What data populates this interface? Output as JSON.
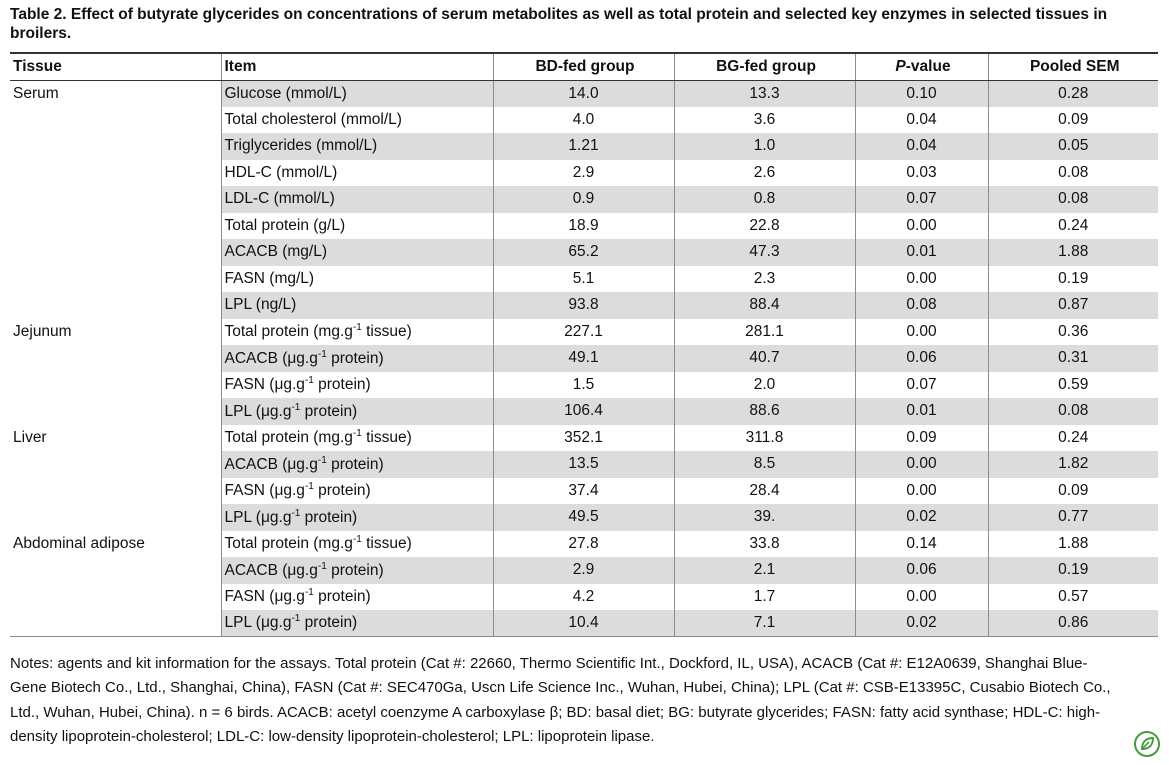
{
  "caption": "Table 2. Effect of butyrate glycerides on concentrations of serum metabolites as well as total protein and selected key enzymes in selected tissues in broilers.",
  "columns": {
    "tissue": "Tissue",
    "item": "Item",
    "bd": "BD-fed group",
    "bg": "BG-fed group",
    "p_italic": "P",
    "p_rest": "-value",
    "sem": "Pooled SEM"
  },
  "rows": [
    {
      "tissue": "Serum",
      "item": "Glucose (mmol/L)",
      "bd": "14.0",
      "bg": "13.3",
      "p": "0.10",
      "sem": "0.28"
    },
    {
      "tissue": "",
      "item": "Total cholesterol (mmol/L)",
      "bd": "4.0",
      "bg": "3.6",
      "p": "0.04",
      "sem": "0.09"
    },
    {
      "tissue": "",
      "item": "Triglycerides (mmol/L)",
      "bd": "1.21",
      "bg": "1.0",
      "p": "0.04",
      "sem": "0.05"
    },
    {
      "tissue": "",
      "item": "HDL-C (mmol/L)",
      "bd": "2.9",
      "bg": "2.6",
      "p": "0.03",
      "sem": "0.08"
    },
    {
      "tissue": "",
      "item": "LDL-C (mmol/L)",
      "bd": "0.9",
      "bg": "0.8",
      "p": "0.07",
      "sem": "0.08"
    },
    {
      "tissue": "",
      "item": "Total protein (g/L)",
      "bd": "18.9",
      "bg": "22.8",
      "p": "0.00",
      "sem": "0.24"
    },
    {
      "tissue": "",
      "item": "ACACB (mg/L)",
      "bd": "65.2",
      "bg": "47.3",
      "p": "0.01",
      "sem": "1.88"
    },
    {
      "tissue": "",
      "item": "FASN (mg/L)",
      "bd": "5.1",
      "bg": "2.3",
      "p": "0.00",
      "sem": "0.19"
    },
    {
      "tissue": "",
      "item": "LPL (ng/L)",
      "bd": "93.8",
      "bg": "88.4",
      "p": "0.08",
      "sem": "0.87"
    },
    {
      "tissue": "Jejunum",
      "item_pre": "Total protein (mg.g",
      "item_sup": "-1",
      "item_post": " tissue)",
      "bd": "227.1",
      "bg": "281.1",
      "p": "0.00",
      "sem": "0.36"
    },
    {
      "tissue": "",
      "item_pre": "ACACB (μg.g",
      "item_sup": "-1",
      "item_post": " protein)",
      "bd": "49.1",
      "bg": "40.7",
      "p": "0.06",
      "sem": "0.31"
    },
    {
      "tissue": "",
      "item_pre": "FASN (μg.g",
      "item_sup": "-1",
      "item_post": " protein)",
      "bd": "1.5",
      "bg": "2.0",
      "p": "0.07",
      "sem": "0.59"
    },
    {
      "tissue": "",
      "item_pre": "LPL (μg.g",
      "item_sup": "-1",
      "item_post": " protein)",
      "bd": "106.4",
      "bg": "88.6",
      "p": "0.01",
      "sem": "0.08"
    },
    {
      "tissue": "Liver",
      "item_pre": "Total protein (mg.g",
      "item_sup": "-1",
      "item_post": " tissue)",
      "bd": "352.1",
      "bg": "311.8",
      "p": "0.09",
      "sem": "0.24"
    },
    {
      "tissue": "",
      "item_pre": "ACACB (μg.g",
      "item_sup": "-1",
      "item_post": " protein)",
      "bd": "13.5",
      "bg": "8.5",
      "p": "0.00",
      "sem": "1.82"
    },
    {
      "tissue": "",
      "item_pre": "FASN (μg.g",
      "item_sup": "-1",
      "item_post": " protein)",
      "bd": "37.4",
      "bg": "28.4",
      "p": "0.00",
      "sem": "0.09"
    },
    {
      "tissue": "",
      "item_pre": "LPL (μg.g",
      "item_sup": "-1",
      "item_post": " protein)",
      "bd": "49.5",
      "bg": "39.",
      "p": "0.02",
      "sem": "0.77"
    },
    {
      "tissue": "Abdominal adipose",
      "item_pre": "Total protein (mg.g",
      "item_sup": "-1",
      "item_post": " tissue)",
      "bd": "27.8",
      "bg": "33.8",
      "p": "0.14",
      "sem": "1.88"
    },
    {
      "tissue": "",
      "item_pre": "ACACB (μg.g",
      "item_sup": "-1",
      "item_post": " protein)",
      "bd": "2.9",
      "bg": "2.1",
      "p": "0.06",
      "sem": "0.19"
    },
    {
      "tissue": "",
      "item_pre": "FASN (μg.g",
      "item_sup": "-1",
      "item_post": " protein)",
      "bd": "4.2",
      "bg": "1.7",
      "p": "0.00",
      "sem": "0.57"
    },
    {
      "tissue": "",
      "item_pre": "LPL (μg.g",
      "item_sup": "-1",
      "item_post": " protein)",
      "bd": "10.4",
      "bg": "7.1",
      "p": "0.02",
      "sem": "0.86"
    }
  ],
  "notes": "Notes: agents and kit information for the assays. Total protein (Cat #: 22660, Thermo Scientific Int., Dockford, IL, USA), ACACB (Cat #: E12A0639, Shanghai Blue-Gene Biotech Co., Ltd., Shanghai, China), FASN (Cat #: SEC470Ga, Uscn Life Science Inc., Wuhan, Hubei, China); LPL (Cat #: CSB-E13395C, Cusabio Biotech Co., Ltd., Wuhan, Hubei, China). n = 6 birds. ACACB: acetyl coenzyme A carboxylase β; BD: basal diet; BG: butyrate glycerides; FASN: fatty acid synthase; HDL-C: high-density lipoprotein-cholesterol; LDL-C: low-density lipoprotein-cholesterol; LPL: lipoprotein lipase.",
  "icon": "plos-leaf-icon",
  "colors": {
    "shade": "#dcdcdc",
    "icon_green": "#4a9a3f"
  }
}
